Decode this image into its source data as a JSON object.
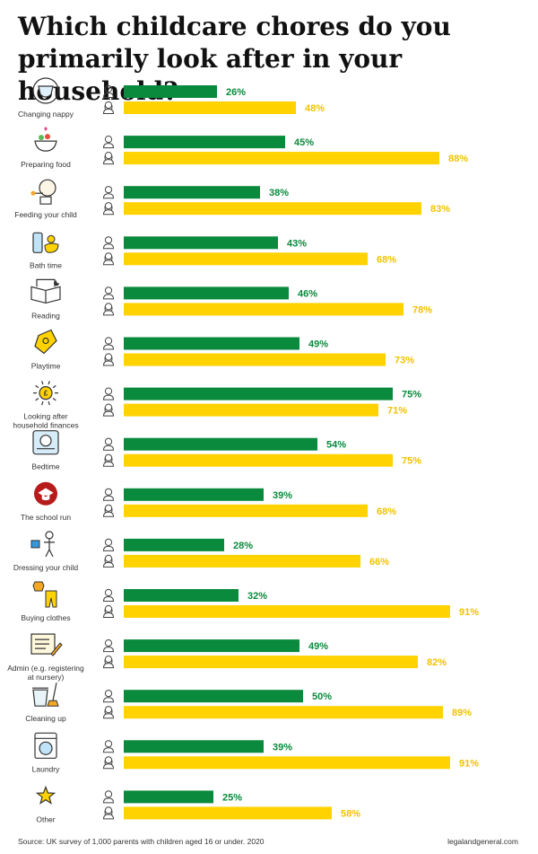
{
  "title": "Which childcare chores do you primarily look after in your household?",
  "source": "Source: UK survey of 1,000 parents with children aged 16 or under. 2020",
  "brand": "legalandgeneral.com",
  "colors": {
    "men": "#0a8a3c",
    "women": "#ffd200",
    "men_label": "#0a8a3c",
    "women_label": "#f2c200"
  },
  "chart_data": {
    "type": "bar",
    "orientation": "horizontal",
    "unit": "%",
    "xlim": [
      0,
      100
    ],
    "grid": false,
    "categories": [
      {
        "label": [
          "Changing nappy"
        ],
        "icon": "nappy-icon"
      },
      {
        "label": [
          "Preparing food"
        ],
        "icon": "food-bowl-icon"
      },
      {
        "label": [
          "Feeding your child"
        ],
        "icon": "baby-feeding-icon"
      },
      {
        "label": [
          "Bath time"
        ],
        "icon": "bath-duck-icon"
      },
      {
        "label": [
          "Reading"
        ],
        "icon": "book-icon"
      },
      {
        "label": [
          "Playtime"
        ],
        "icon": "toy-icon"
      },
      {
        "label": [
          "Looking after",
          "household finances"
        ],
        "icon": "pound-coin-icon"
      },
      {
        "label": [
          "Bedtime"
        ],
        "icon": "bed-icon"
      },
      {
        "label": [
          "The school run"
        ],
        "icon": "graduation-cap-icon"
      },
      {
        "label": [
          "Dressing your child"
        ],
        "icon": "child-dressing-icon"
      },
      {
        "label": [
          "Buying clothes"
        ],
        "icon": "clothes-icon"
      },
      {
        "label": [
          "Admin (e.g. registering",
          "at nursery)"
        ],
        "icon": "form-pencil-icon"
      },
      {
        "label": [
          "Cleaning up"
        ],
        "icon": "bin-broom-icon"
      },
      {
        "label": [
          "Laundry"
        ],
        "icon": "washing-machine-icon"
      },
      {
        "label": [
          "Other"
        ],
        "icon": "star-icon"
      }
    ],
    "series": [
      {
        "icon": "man-icon",
        "values": [
          26,
          45,
          38,
          43,
          46,
          49,
          75,
          54,
          39,
          28,
          32,
          49,
          50,
          39,
          25
        ]
      },
      {
        "icon": "woman-icon",
        "values": [
          48,
          88,
          83,
          68,
          78,
          73,
          71,
          75,
          68,
          66,
          91,
          82,
          89,
          91,
          58
        ]
      }
    ]
  }
}
